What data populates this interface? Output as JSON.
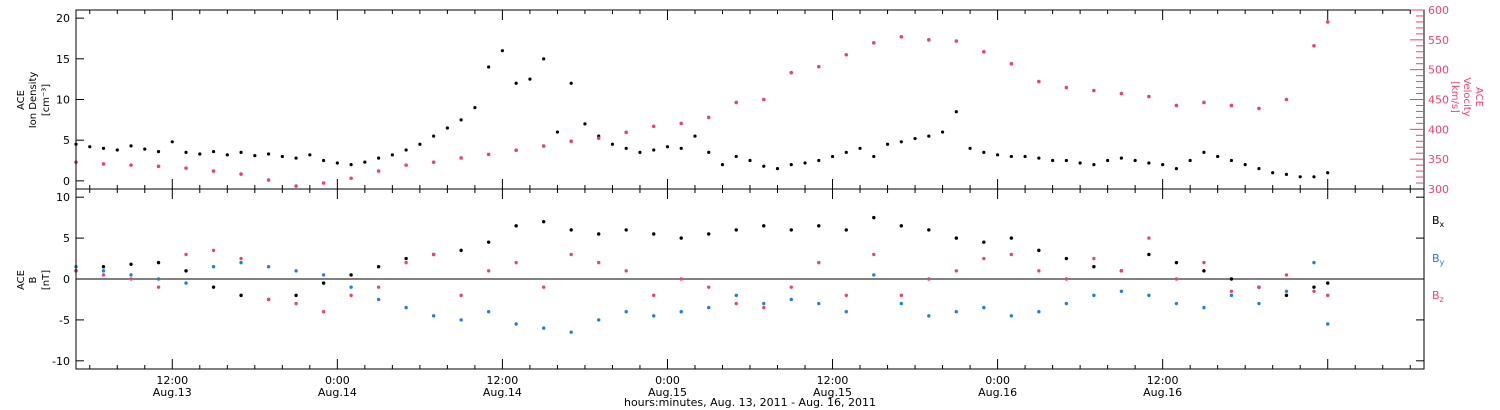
{
  "chart_data": [
    {
      "type": "scatter",
      "panel": "top",
      "ylabel_left": [
        "ACE",
        "Ion Density",
        "[cm⁻³]"
      ],
      "ylabel_right": [
        "ACE",
        "Velocity",
        "[km/s]"
      ],
      "ylim_left": [
        -1,
        21
      ],
      "ylim_right": [
        300,
        600
      ],
      "yticks_left": [
        0,
        5,
        10,
        15,
        20
      ],
      "yticks_right": [
        300,
        350,
        400,
        450,
        500,
        550,
        600
      ],
      "colors": {
        "density": "#000000",
        "velocity": "#e8456b"
      },
      "series": [
        {
          "name": "Ion Density",
          "axis": "left",
          "x": [
            0,
            1,
            2,
            3,
            4,
            5,
            6,
            7,
            8,
            9,
            10,
            11,
            12,
            13,
            14,
            15,
            16,
            17,
            18,
            19,
            20,
            21,
            22,
            23,
            24,
            25,
            26,
            27,
            28,
            29,
            30,
            31,
            32,
            33,
            34,
            35,
            36,
            37,
            38,
            39,
            40,
            41,
            42,
            43,
            44,
            45,
            46,
            47,
            48,
            49,
            50,
            51,
            52,
            53,
            54,
            55,
            56,
            57,
            58,
            59,
            60,
            61,
            62,
            63,
            64,
            65,
            66,
            67,
            68,
            69,
            70,
            71,
            72,
            73,
            74,
            75,
            76,
            77,
            78,
            79,
            80,
            81,
            82,
            83,
            84,
            85,
            86,
            87,
            88,
            89,
            90,
            91
          ],
          "y": [
            4.5,
            4.2,
            4.0,
            3.8,
            4.3,
            3.9,
            3.6,
            4.8,
            3.5,
            3.3,
            3.6,
            3.2,
            3.5,
            3.1,
            3.3,
            3.0,
            2.8,
            3.2,
            2.5,
            2.2,
            2.0,
            2.3,
            2.8,
            3.2,
            3.8,
            4.5,
            5.5,
            6.5,
            7.5,
            9.0,
            14.0,
            16.0,
            12.0,
            12.5,
            15.0,
            6.0,
            12.0,
            7.0,
            5.5,
            4.5,
            4.0,
            3.5,
            3.8,
            4.2,
            4.0,
            5.5,
            3.5,
            2.0,
            3.0,
            2.5,
            1.8,
            1.5,
            2.0,
            2.2,
            2.5,
            3.0,
            3.5,
            4.0,
            3.0,
            4.5,
            4.8,
            5.2,
            5.5,
            6.0,
            8.5,
            4.0,
            3.5,
            3.2,
            3.0,
            3.0,
            2.8,
            2.5,
            2.5,
            2.2,
            2.0,
            2.5,
            2.8,
            2.5,
            2.2,
            2.0,
            1.5,
            2.5,
            3.5,
            3.0,
            2.5,
            2.0,
            1.5,
            1.0,
            0.8,
            0.5,
            0.5,
            1.0
          ]
        },
        {
          "name": "Velocity",
          "axis": "right",
          "x": [
            0,
            2,
            4,
            6,
            8,
            10,
            12,
            14,
            16,
            18,
            20,
            22,
            24,
            26,
            28,
            30,
            32,
            34,
            36,
            38,
            40,
            42,
            44,
            46,
            48,
            50,
            52,
            54,
            56,
            58,
            60,
            62,
            64,
            66,
            68,
            70,
            72,
            74,
            76,
            78,
            80,
            82,
            84,
            86,
            88,
            90,
            91
          ],
          "y": [
            345,
            342,
            340,
            338,
            335,
            330,
            325,
            315,
            305,
            310,
            318,
            330,
            340,
            345,
            352,
            358,
            365,
            372,
            380,
            385,
            395,
            405,
            410,
            420,
            445,
            450,
            495,
            505,
            525,
            545,
            555,
            550,
            548,
            530,
            510,
            480,
            470,
            465,
            460,
            455,
            440,
            445,
            440,
            435,
            450,
            540,
            580
          ]
        }
      ]
    },
    {
      "type": "scatter",
      "panel": "bottom",
      "ylabel": [
        "ACE",
        "B",
        "[nT]"
      ],
      "ylim": [
        -11,
        11
      ],
      "yticks": [
        -10,
        -5,
        0,
        5,
        10
      ],
      "colors": {
        "Bx": "#000000",
        "By": "#1e7fe0",
        "Bz": "#e8456b"
      },
      "series": [
        {
          "name": "Bx",
          "x": [
            0,
            2,
            4,
            6,
            8,
            10,
            12,
            14,
            16,
            18,
            20,
            22,
            24,
            26,
            28,
            30,
            32,
            34,
            36,
            38,
            40,
            42,
            44,
            46,
            48,
            50,
            52,
            54,
            56,
            58,
            60,
            62,
            64,
            66,
            68,
            70,
            72,
            74,
            76,
            78,
            80,
            82,
            84,
            86,
            88,
            90,
            91
          ],
          "y": [
            1.0,
            1.5,
            1.8,
            2.0,
            1.0,
            -1.0,
            -2.0,
            -2.5,
            -2.0,
            -0.5,
            0.5,
            1.5,
            2.5,
            3.0,
            3.5,
            4.5,
            6.5,
            7.0,
            6.0,
            5.5,
            6.0,
            5.5,
            5.0,
            5.5,
            6.0,
            6.5,
            6.0,
            6.5,
            6.0,
            7.5,
            6.5,
            6.0,
            5.0,
            4.5,
            5.0,
            3.5,
            2.5,
            1.5,
            1.0,
            3.0,
            2.0,
            1.0,
            0.0,
            -1.0,
            -2.0,
            -1.0,
            -0.5
          ]
        },
        {
          "name": "By",
          "x": [
            0,
            2,
            4,
            6,
            8,
            10,
            12,
            14,
            16,
            18,
            20,
            22,
            24,
            26,
            28,
            30,
            32,
            34,
            36,
            38,
            40,
            42,
            44,
            46,
            48,
            50,
            52,
            54,
            56,
            58,
            60,
            62,
            64,
            66,
            68,
            70,
            72,
            74,
            76,
            78,
            80,
            82,
            84,
            86,
            88,
            90,
            91
          ],
          "y": [
            1.5,
            1.0,
            0.5,
            0.0,
            -0.5,
            1.5,
            2.0,
            1.5,
            1.0,
            0.5,
            -1.0,
            -2.5,
            -3.5,
            -4.5,
            -5.0,
            -4.0,
            -5.5,
            -6.0,
            -6.5,
            -5.0,
            -4.0,
            -4.5,
            -4.0,
            -3.5,
            -2.0,
            -3.0,
            -2.5,
            -3.0,
            -4.0,
            0.5,
            -3.0,
            -4.5,
            -4.0,
            -3.5,
            -4.5,
            -4.0,
            -3.0,
            -2.0,
            -1.5,
            -2.0,
            -3.0,
            -3.5,
            -2.0,
            -3.0,
            -1.5,
            2.0,
            -5.5
          ]
        },
        {
          "name": "Bz",
          "x": [
            0,
            2,
            4,
            6,
            8,
            10,
            12,
            14,
            16,
            18,
            20,
            22,
            24,
            26,
            28,
            30,
            32,
            34,
            36,
            38,
            40,
            42,
            44,
            46,
            48,
            50,
            52,
            54,
            56,
            58,
            60,
            62,
            64,
            66,
            68,
            70,
            72,
            74,
            76,
            78,
            80,
            82,
            84,
            86,
            88,
            90,
            91
          ],
          "y": [
            1.0,
            0.5,
            0.0,
            -1.0,
            3.0,
            3.5,
            2.5,
            -2.5,
            -3.0,
            -4.0,
            -2.0,
            -1.0,
            2.0,
            3.0,
            -2.0,
            1.0,
            2.0,
            -1.0,
            3.0,
            2.0,
            1.0,
            -2.0,
            0.0,
            -1.0,
            -3.0,
            -3.5,
            -1.0,
            2.0,
            -2.0,
            3.0,
            -2.0,
            0.0,
            1.0,
            2.5,
            3.0,
            1.0,
            0.0,
            2.5,
            1.0,
            5.0,
            0.0,
            2.0,
            -1.5,
            -1.0,
            0.5,
            -1.5,
            -2.0
          ]
        }
      ]
    }
  ],
  "x_axis": {
    "hour_labels": [
      "12:00",
      "0:00",
      "12:00",
      "0:00",
      "12:00",
      "0:00",
      "12:00"
    ],
    "day_labels": [
      "Aug.13",
      "Aug.14",
      "Aug.14",
      "Aug.15",
      "Aug.15",
      "Aug.16",
      "Aug.16"
    ],
    "title": "hours:minutes, Aug. 13, 2011 - Aug. 16, 2011"
  },
  "legend": {
    "bx": "B",
    "bx_sub": "x",
    "by": "B",
    "by_sub": "y",
    "bz": "B",
    "bz_sub": "z"
  }
}
